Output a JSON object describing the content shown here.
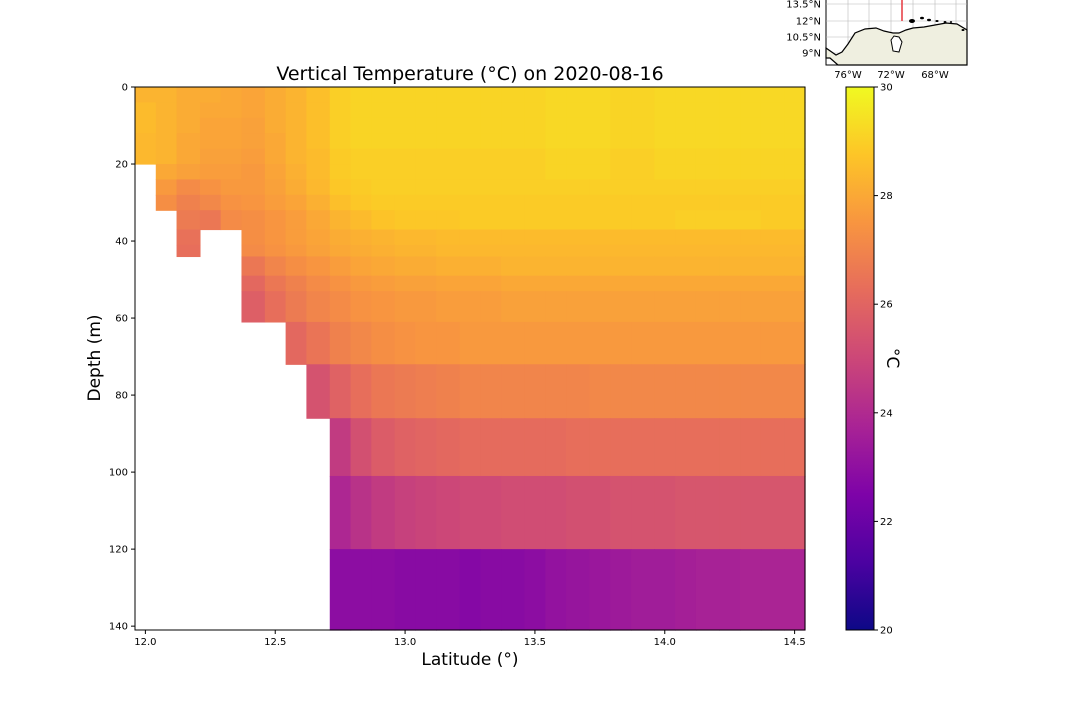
{
  "chart_data": [
    {
      "type": "heatmap",
      "title": "Vertical Temperature (°C) on 2020-08-16",
      "xlabel": "Latitude (°)",
      "ylabel": "Depth (m)",
      "xlim": [
        11.96,
        14.54
      ],
      "ylim": [
        141,
        0
      ],
      "x_ticks": [
        12.0,
        12.5,
        13.0,
        13.5,
        14.0,
        14.5
      ],
      "x_tick_labels": [
        "12.0",
        "12.5",
        "13.0",
        "13.5",
        "14.0",
        "14.5"
      ],
      "y_ticks": [
        0,
        20,
        40,
        60,
        80,
        100,
        120,
        140
      ],
      "y_tick_labels": [
        "0",
        "20",
        "40",
        "60",
        "80",
        "100",
        "120",
        "140"
      ],
      "lat_edges": [
        11.96,
        12.04,
        12.12,
        12.21,
        12.29,
        12.37,
        12.46,
        12.54,
        12.62,
        12.71,
        12.79,
        12.87,
        12.96,
        13.04,
        13.12,
        13.21,
        13.29,
        13.37,
        13.46,
        13.54,
        13.62,
        13.71,
        13.79,
        13.87,
        13.96,
        14.04,
        14.12,
        14.21,
        14.29,
        14.37,
        14.46,
        14.54
      ],
      "depth_edges": [
        0,
        4,
        8,
        12,
        16,
        20,
        24,
        28,
        32,
        37,
        41,
        44,
        49,
        53,
        61,
        72,
        86,
        101,
        120,
        141
      ],
      "temperature_c": [
        [
          28.3,
          28.3,
          28.1,
          28.1,
          28.0,
          27.9,
          28.1,
          28.3,
          28.6,
          29.0,
          29.1,
          29.1,
          29.1,
          29.1,
          29.1,
          29.1,
          29.1,
          29.1,
          29.1,
          29.2,
          29.2,
          29.2,
          29.1,
          29.1,
          29.2,
          29.2,
          29.2,
          29.2,
          29.2,
          29.2,
          29.2
        ],
        [
          28.5,
          28.3,
          28.1,
          28.0,
          28.0,
          27.9,
          28.1,
          28.3,
          28.6,
          29.0,
          29.1,
          29.1,
          29.1,
          29.1,
          29.1,
          29.1,
          29.1,
          29.1,
          29.1,
          29.2,
          29.2,
          29.2,
          29.1,
          29.1,
          29.2,
          29.2,
          29.2,
          29.2,
          29.2,
          29.2,
          29.2
        ],
        [
          28.5,
          28.3,
          28.1,
          27.9,
          27.9,
          27.8,
          28.1,
          28.3,
          28.6,
          29.0,
          29.1,
          29.1,
          29.1,
          29.1,
          29.1,
          29.1,
          29.1,
          29.1,
          29.1,
          29.2,
          29.2,
          29.2,
          29.1,
          29.1,
          29.2,
          29.2,
          29.2,
          29.2,
          29.2,
          29.2,
          29.2
        ],
        [
          28.4,
          28.3,
          28.0,
          27.9,
          27.9,
          27.8,
          28.0,
          28.3,
          28.6,
          29.0,
          29.1,
          29.1,
          29.1,
          29.1,
          29.1,
          29.1,
          29.1,
          29.1,
          29.1,
          29.2,
          29.2,
          29.2,
          29.1,
          29.1,
          29.2,
          29.2,
          29.2,
          29.2,
          29.2,
          29.2,
          29.2
        ],
        [
          28.4,
          28.3,
          28.0,
          27.8,
          27.8,
          27.7,
          28.0,
          28.3,
          28.5,
          28.9,
          29.0,
          29.0,
          29.0,
          29.0,
          29.0,
          29.0,
          29.0,
          29.0,
          29.0,
          29.1,
          29.1,
          29.1,
          29.0,
          29.0,
          29.1,
          29.1,
          29.1,
          29.1,
          29.1,
          29.1,
          29.1
        ],
        [
          null,
          28.0,
          27.8,
          27.7,
          27.7,
          27.6,
          27.9,
          28.2,
          28.5,
          28.9,
          29.0,
          29.0,
          29.0,
          29.0,
          29.0,
          29.0,
          29.0,
          29.0,
          29.0,
          29.1,
          29.1,
          29.1,
          29.0,
          29.0,
          29.1,
          29.1,
          29.1,
          29.1,
          29.1,
          29.1,
          29.1
        ],
        [
          null,
          27.6,
          27.2,
          27.4,
          27.6,
          27.6,
          27.8,
          28.1,
          28.4,
          28.8,
          28.9,
          29.0,
          29.0,
          29.0,
          29.0,
          29.0,
          29.0,
          29.0,
          29.0,
          29.0,
          29.0,
          29.0,
          29.0,
          29.0,
          29.0,
          29.0,
          29.0,
          29.0,
          29.0,
          29.0,
          29.0
        ],
        [
          null,
          27.3,
          26.9,
          27.1,
          27.4,
          27.5,
          27.7,
          27.9,
          28.2,
          28.6,
          28.8,
          28.9,
          28.9,
          28.9,
          28.9,
          28.9,
          28.9,
          28.9,
          28.9,
          28.9,
          28.9,
          28.9,
          28.9,
          28.9,
          28.9,
          28.9,
          28.9,
          28.9,
          28.9,
          28.9,
          28.9
        ],
        [
          null,
          null,
          26.7,
          26.6,
          27.2,
          27.3,
          27.5,
          27.7,
          28.0,
          28.3,
          28.5,
          28.7,
          28.8,
          28.8,
          28.8,
          28.9,
          28.9,
          28.9,
          28.9,
          28.9,
          28.9,
          28.9,
          28.9,
          28.9,
          28.9,
          29.0,
          29.0,
          29.0,
          29.0,
          28.9,
          28.9
        ],
        [
          null,
          null,
          26.4,
          null,
          null,
          27.3,
          27.5,
          27.7,
          27.9,
          28.1,
          28.2,
          28.3,
          28.4,
          28.4,
          28.5,
          28.5,
          28.5,
          28.5,
          28.5,
          28.5,
          28.5,
          28.5,
          28.5,
          28.5,
          28.5,
          28.5,
          28.5,
          28.5,
          28.5,
          28.5,
          28.5
        ],
        [
          null,
          null,
          26.3,
          null,
          null,
          27.2,
          27.4,
          27.6,
          27.8,
          28.0,
          28.1,
          28.2,
          28.3,
          28.3,
          28.4,
          28.4,
          28.4,
          28.4,
          28.4,
          28.4,
          28.4,
          28.4,
          28.4,
          28.4,
          28.4,
          28.4,
          28.4,
          28.4,
          28.4,
          28.4,
          28.4
        ],
        [
          null,
          null,
          null,
          null,
          null,
          26.6,
          27.0,
          27.3,
          27.5,
          27.7,
          27.9,
          28.0,
          28.1,
          28.1,
          28.2,
          28.2,
          28.2,
          28.3,
          28.3,
          28.3,
          28.3,
          28.3,
          28.3,
          28.3,
          28.3,
          28.3,
          28.3,
          28.3,
          28.3,
          28.3,
          28.3
        ],
        [
          null,
          null,
          null,
          null,
          null,
          26.1,
          26.6,
          26.9,
          27.2,
          27.4,
          27.6,
          27.7,
          27.8,
          27.8,
          27.9,
          27.9,
          27.9,
          28.0,
          28.0,
          28.0,
          28.0,
          28.0,
          28.0,
          28.0,
          28.0,
          28.0,
          28.0,
          28.0,
          28.0,
          28.0,
          28.0
        ],
        [
          null,
          null,
          null,
          null,
          null,
          25.8,
          26.3,
          26.7,
          27.0,
          27.2,
          27.4,
          27.5,
          27.6,
          27.6,
          27.7,
          27.7,
          27.7,
          27.8,
          27.8,
          27.8,
          27.8,
          27.8,
          27.8,
          27.8,
          27.8,
          27.8,
          27.8,
          27.8,
          27.8,
          27.8,
          27.8
        ],
        [
          null,
          null,
          null,
          null,
          null,
          null,
          null,
          26.1,
          26.5,
          26.9,
          27.1,
          27.3,
          27.4,
          27.5,
          27.5,
          27.6,
          27.6,
          27.6,
          27.6,
          27.6,
          27.6,
          27.6,
          27.6,
          27.6,
          27.6,
          27.6,
          27.6,
          27.6,
          27.6,
          27.6,
          27.6
        ],
        [
          null,
          null,
          null,
          null,
          null,
          null,
          null,
          null,
          25.4,
          25.9,
          26.3,
          26.6,
          26.7,
          26.8,
          26.9,
          27.0,
          27.0,
          27.0,
          27.0,
          27.0,
          27.0,
          27.1,
          27.1,
          27.1,
          27.1,
          27.1,
          27.1,
          27.1,
          27.1,
          27.1,
          27.1
        ],
        [
          null,
          null,
          null,
          null,
          null,
          null,
          null,
          null,
          null,
          24.6,
          25.3,
          25.7,
          25.9,
          26.0,
          26.1,
          26.2,
          26.2,
          26.2,
          26.2,
          26.2,
          26.3,
          26.3,
          26.3,
          26.3,
          26.3,
          26.3,
          26.3,
          26.3,
          26.3,
          26.3,
          26.3
        ],
        [
          null,
          null,
          null,
          null,
          null,
          null,
          null,
          null,
          null,
          23.9,
          24.3,
          24.6,
          24.8,
          24.9,
          25.0,
          25.1,
          25.1,
          25.2,
          25.2,
          25.2,
          25.3,
          25.3,
          25.4,
          25.4,
          25.4,
          25.5,
          25.5,
          25.5,
          25.5,
          25.5,
          25.5
        ],
        [
          null,
          null,
          null,
          null,
          null,
          null,
          null,
          null,
          null,
          22.9,
          22.9,
          22.9,
          22.8,
          22.8,
          22.8,
          22.7,
          22.8,
          22.8,
          22.9,
          23.1,
          23.2,
          23.3,
          23.4,
          23.5,
          23.5,
          23.6,
          23.7,
          23.7,
          23.8,
          23.8,
          23.8
        ]
      ],
      "colorbar": {
        "label": "°C",
        "range": [
          20,
          30
        ],
        "ticks": [
          20,
          22,
          24,
          26,
          28,
          30
        ],
        "tick_labels": [
          "20",
          "22",
          "24",
          "26",
          "28",
          "30"
        ],
        "colormap": "plasma"
      }
    },
    {
      "type": "map",
      "role": "inset locator map",
      "x_tick_labels": [
        "76°W",
        "72°W",
        "68°W"
      ],
      "y_tick_labels": [
        "13.5°N",
        "12°N",
        "10.5°N",
        "9°N"
      ],
      "transect_color": "#e8434a",
      "land_color": "#efefe0"
    }
  ]
}
